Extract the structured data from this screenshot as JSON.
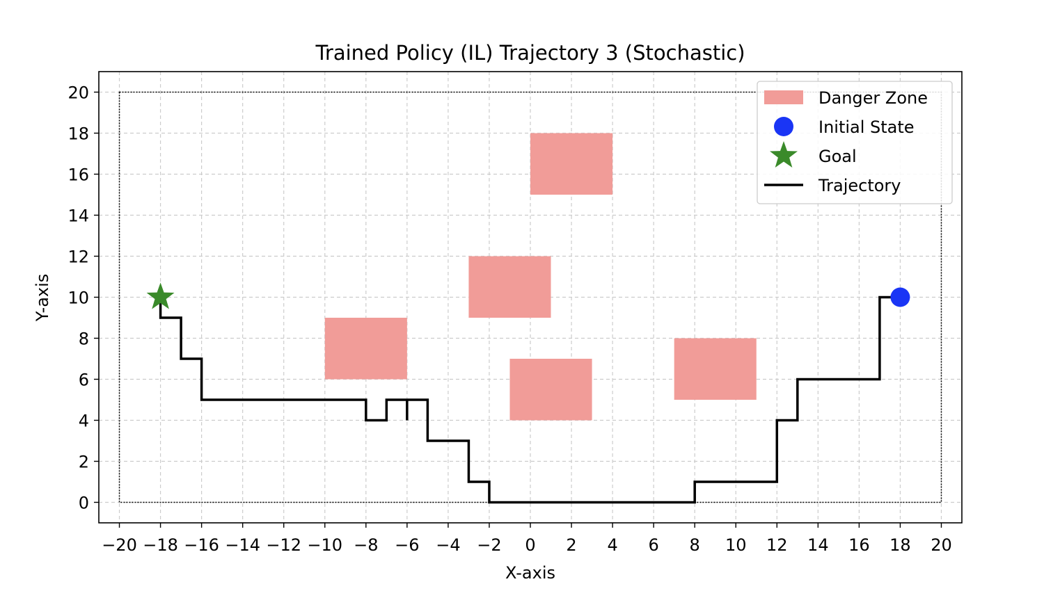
{
  "chart_data": {
    "type": "line",
    "title": "Trained Policy (IL) Trajectory 3 (Stochastic)",
    "xlabel": "X-axis",
    "ylabel": "Y-axis",
    "xlim": [
      -21,
      21
    ],
    "ylim": [
      -1,
      21
    ],
    "xticks": [
      -20,
      -18,
      -16,
      -14,
      -12,
      -10,
      -8,
      -6,
      -4,
      -2,
      0,
      2,
      4,
      6,
      8,
      10,
      12,
      14,
      16,
      18,
      20
    ],
    "yticks": [
      0,
      2,
      4,
      6,
      8,
      10,
      12,
      14,
      16,
      18,
      20
    ],
    "grid": true,
    "legend_position": "top-right",
    "boundary": {
      "x": [
        -20,
        20
      ],
      "y": [
        0,
        20
      ]
    },
    "danger_zones": [
      {
        "x": [
          0,
          4
        ],
        "y": [
          15,
          18
        ]
      },
      {
        "x": [
          -3,
          1
        ],
        "y": [
          9,
          12
        ]
      },
      {
        "x": [
          -10,
          -6
        ],
        "y": [
          6,
          9
        ]
      },
      {
        "x": [
          -1,
          3
        ],
        "y": [
          4,
          7
        ]
      },
      {
        "x": [
          7,
          11
        ],
        "y": [
          5,
          8
        ]
      }
    ],
    "initial_state": {
      "x": 18,
      "y": 10
    },
    "goal": {
      "x": -18,
      "y": 10
    },
    "trajectory": {
      "x": [
        18,
        17,
        17,
        13,
        13,
        12,
        12,
        8,
        8,
        -2,
        -2,
        -3,
        -3,
        -5,
        -5,
        -6,
        -6,
        -6,
        -7,
        -7,
        -8,
        -8,
        -16,
        -16,
        -17,
        -17,
        -18,
        -18
      ],
      "y": [
        10,
        10,
        6,
        6,
        4,
        4,
        1,
        1,
        0,
        0,
        1,
        1,
        3,
        3,
        5,
        5,
        4,
        5,
        5,
        4,
        4,
        5,
        5,
        7,
        7,
        9,
        9,
        10
      ]
    },
    "legend": [
      "Danger Zone",
      "Initial State",
      "Goal",
      "Trajectory"
    ],
    "colors": {
      "danger_zone": "#f19c98",
      "initial_state": "#1a35f5",
      "goal": "#3a8a2a",
      "trajectory": "#000000",
      "grid": "#cccccc"
    }
  }
}
